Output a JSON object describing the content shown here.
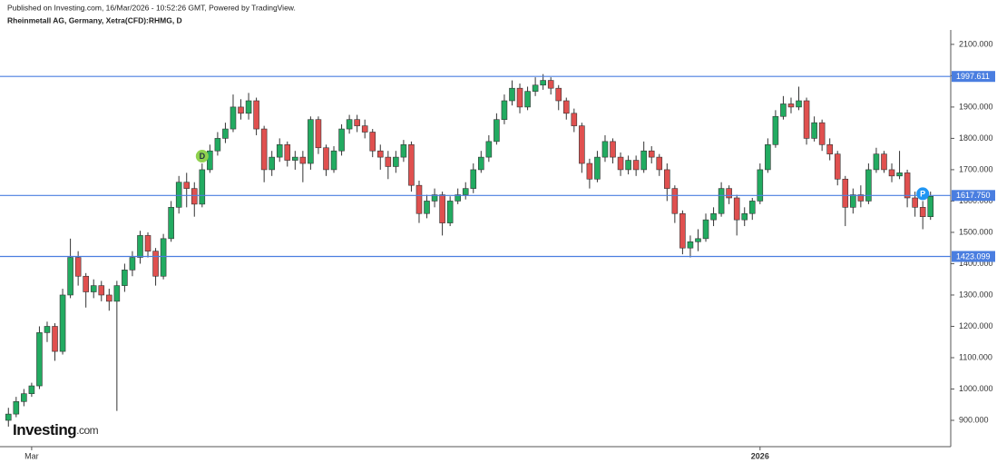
{
  "header": {
    "published": "Published on Investing.com, 16/Mar/2026 - 10:52:26 GMT, Powered by TradingView.",
    "symbol": "Rheinmetall AG, Germany, Xetra(CFD):RHMG, D"
  },
  "logo": {
    "brand": "Investing",
    "suffix": ".com"
  },
  "chart_data": {
    "type": "candlestick",
    "categories": [
      null,
      null,
      null,
      "Mar",
      null,
      null,
      null,
      null,
      null,
      null,
      null,
      null,
      null,
      null,
      null,
      null,
      null,
      null,
      null,
      null,
      null,
      null,
      null,
      null,
      null,
      null,
      null,
      null,
      null,
      null,
      null,
      null,
      null,
      null,
      null,
      null,
      null,
      null,
      null,
      null,
      null,
      null,
      null,
      null,
      null,
      null,
      null,
      null,
      null,
      null,
      null,
      null,
      null,
      null,
      null,
      null,
      null,
      null,
      null,
      null,
      null,
      null,
      null,
      null,
      null,
      null,
      null,
      null,
      null,
      null,
      null,
      null,
      null,
      null,
      null,
      null,
      null,
      null,
      null,
      null,
      null,
      null,
      null,
      null,
      null,
      null,
      null,
      null,
      null,
      null,
      null,
      null,
      null,
      null,
      null,
      null,
      null,
      "2026",
      null,
      null,
      null,
      null,
      null,
      null,
      null,
      null,
      null,
      null,
      null,
      null,
      null,
      null,
      null,
      null,
      null,
      null,
      null,
      null,
      null,
      null
    ],
    "open": [
      900,
      920,
      960,
      985,
      1010,
      1180,
      1200,
      1120,
      1300,
      1420,
      1360,
      1310,
      1330,
      1300,
      1280,
      1330,
      1380,
      1420,
      1490,
      1440,
      1360,
      1480,
      1580,
      1660,
      1640,
      1590,
      1700,
      1760,
      1800,
      1830,
      1900,
      1880,
      1920,
      1830,
      1700,
      1740,
      1780,
      1730,
      1740,
      1720,
      1860,
      1770,
      1700,
      1760,
      1830,
      1860,
      1840,
      1820,
      1760,
      1740,
      1710,
      1740,
      1780,
      1650,
      1560,
      1600,
      1620,
      1530,
      1600,
      1620,
      1640,
      1700,
      1740,
      1790,
      1860,
      1920,
      1960,
      1900,
      1950,
      1970,
      1985,
      1960,
      1920,
      1880,
      1840,
      1720,
      1670,
      1740,
      1790,
      1740,
      1700,
      1730,
      1700,
      1760,
      1740,
      1700,
      1640,
      1560,
      1450,
      1470,
      1480,
      1540,
      1560,
      1640,
      1610,
      1540,
      1560,
      1600,
      1700,
      1780,
      1870,
      1910,
      1900,
      1920,
      1800,
      1850,
      1780,
      1750,
      1670,
      1580,
      1620,
      1600,
      1700,
      1750,
      1700,
      1680,
      1690,
      1610,
      1580,
      1550
    ],
    "high": [
      940,
      975,
      1000,
      1020,
      1200,
      1215,
      1210,
      1320,
      1480,
      1440,
      1370,
      1350,
      1345,
      1320,
      1345,
      1400,
      1440,
      1505,
      1500,
      1450,
      1495,
      1600,
      1680,
      1690,
      1660,
      1720,
      1780,
      1820,
      1850,
      1940,
      1925,
      1945,
      1930,
      1840,
      1760,
      1800,
      1790,
      1760,
      1760,
      1870,
      1870,
      1780,
      1775,
      1845,
      1875,
      1875,
      1860,
      1830,
      1780,
      1760,
      1760,
      1795,
      1790,
      1665,
      1620,
      1640,
      1630,
      1615,
      1640,
      1660,
      1720,
      1760,
      1810,
      1880,
      1940,
      1985,
      1975,
      1965,
      1995,
      2005,
      1995,
      1970,
      1930,
      1895,
      1850,
      1735,
      1760,
      1810,
      1800,
      1755,
      1745,
      1745,
      1790,
      1775,
      1750,
      1720,
      1650,
      1570,
      1490,
      1510,
      1560,
      1580,
      1660,
      1650,
      1620,
      1580,
      1610,
      1720,
      1800,
      1890,
      1935,
      1930,
      1965,
      1930,
      1870,
      1860,
      1800,
      1760,
      1680,
      1640,
      1650,
      1720,
      1770,
      1760,
      1720,
      1760,
      1700,
      1630,
      1600,
      1630
    ],
    "low": [
      880,
      910,
      945,
      975,
      1000,
      1150,
      1090,
      1110,
      1290,
      1330,
      1260,
      1290,
      1280,
      1250,
      930,
      1310,
      1360,
      1400,
      1420,
      1330,
      1350,
      1470,
      1560,
      1580,
      1550,
      1580,
      1690,
      1745,
      1785,
      1820,
      1860,
      1860,
      1810,
      1660,
      1680,
      1725,
      1710,
      1700,
      1660,
      1700,
      1750,
      1680,
      1690,
      1745,
      1815,
      1820,
      1800,
      1740,
      1700,
      1670,
      1690,
      1725,
      1630,
      1530,
      1545,
      1580,
      1490,
      1520,
      1590,
      1605,
      1625,
      1690,
      1725,
      1780,
      1845,
      1905,
      1880,
      1890,
      1935,
      1955,
      1940,
      1890,
      1860,
      1820,
      1690,
      1640,
      1660,
      1725,
      1720,
      1680,
      1685,
      1680,
      1690,
      1720,
      1680,
      1600,
      1530,
      1430,
      1420,
      1440,
      1470,
      1520,
      1550,
      1590,
      1490,
      1520,
      1540,
      1590,
      1690,
      1770,
      1860,
      1880,
      1890,
      1780,
      1790,
      1760,
      1730,
      1650,
      1520,
      1560,
      1580,
      1590,
      1690,
      1690,
      1660,
      1670,
      1580,
      1550,
      1510,
      1540
    ],
    "close": [
      920,
      960,
      985,
      1010,
      1180,
      1200,
      1120,
      1300,
      1420,
      1360,
      1310,
      1330,
      1300,
      1280,
      1330,
      1380,
      1420,
      1490,
      1440,
      1360,
      1480,
      1580,
      1660,
      1640,
      1590,
      1700,
      1760,
      1800,
      1830,
      1900,
      1880,
      1920,
      1830,
      1700,
      1740,
      1780,
      1730,
      1740,
      1720,
      1860,
      1770,
      1700,
      1760,
      1830,
      1860,
      1840,
      1820,
      1760,
      1740,
      1710,
      1740,
      1780,
      1650,
      1560,
      1600,
      1620,
      1530,
      1600,
      1620,
      1640,
      1700,
      1740,
      1790,
      1860,
      1920,
      1960,
      1900,
      1950,
      1970,
      1985,
      1960,
      1920,
      1880,
      1840,
      1720,
      1670,
      1740,
      1790,
      1740,
      1700,
      1730,
      1700,
      1760,
      1740,
      1700,
      1640,
      1560,
      1450,
      1470,
      1480,
      1540,
      1560,
      1640,
      1610,
      1540,
      1560,
      1600,
      1700,
      1780,
      1870,
      1910,
      1900,
      1920,
      1800,
      1850,
      1780,
      1750,
      1670,
      1580,
      1620,
      1600,
      1700,
      1750,
      1700,
      1680,
      1690,
      1610,
      1580,
      1550,
      1615
    ],
    "up_color": "#22ab61",
    "down_color": "#e0504f",
    "ylim": [
      816,
      2146
    ],
    "yticks": [
      {
        "value": 900,
        "label": "900.000"
      },
      {
        "value": 1000,
        "label": "1000.000"
      },
      {
        "value": 1100,
        "label": "1100.000"
      },
      {
        "value": 1200,
        "label": "1200.000"
      },
      {
        "value": 1300,
        "label": "1300.000"
      },
      {
        "value": 1400,
        "label": "1400.000"
      },
      {
        "value": 1500,
        "label": "1500.000"
      },
      {
        "value": 1600,
        "label": "1600.000"
      },
      {
        "value": 1700,
        "label": "1700.000"
      },
      {
        "value": 1800,
        "label": "1800.000"
      },
      {
        "value": 1900,
        "label": "1900.000"
      },
      {
        "value": 2000,
        "label": "2000.000"
      },
      {
        "value": 2100,
        "label": "2100.000"
      }
    ],
    "levels": [
      1997.611,
      1617.75,
      1423.099
    ],
    "level_labels": [
      "1997.611",
      "1617.750",
      "1423.099"
    ],
    "level_color": "#4a7ee0",
    "markers": [
      {
        "label": "D",
        "color": "#8fd14f"
      },
      {
        "label": "P",
        "color": "#2196f3"
      }
    ]
  }
}
